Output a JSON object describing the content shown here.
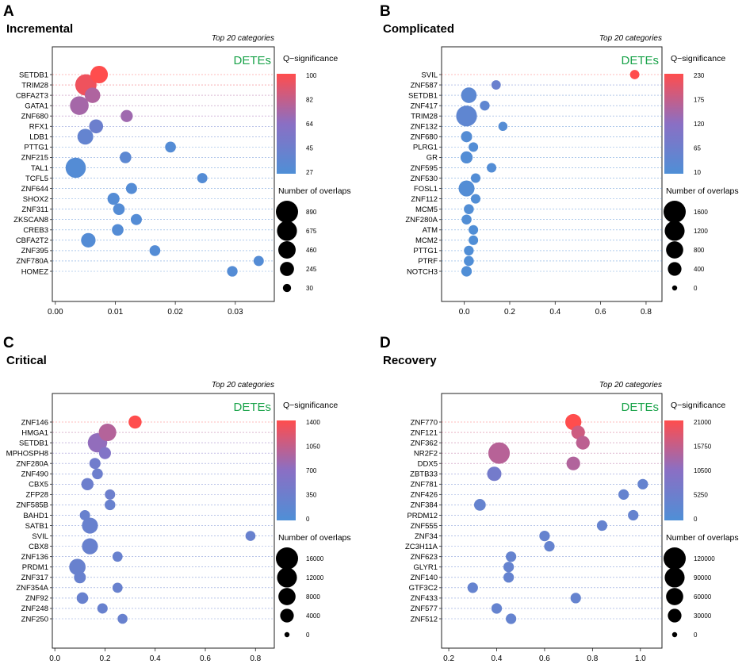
{
  "chart_data": [
    {
      "type": "scatter",
      "panel_label": "A",
      "title": "Incremental",
      "subtitle": "Top 20 categories",
      "annotation": "DETEs",
      "categories": [
        "SETDB1",
        "TRIM28",
        "CBFA2T3",
        "GATA1",
        "ZNF680",
        "RFX1",
        "LDB1",
        "PTTG1",
        "ZNF215",
        "TAL1",
        "TCFL5",
        "ZNF644",
        "SHOX2",
        "ZNF311",
        "ZKSCAN8",
        "CREB3",
        "CBFA2T2",
        "ZNF395",
        "ZNF780A",
        "HOMEZ"
      ],
      "x": [
        0.0073,
        0.0051,
        0.0062,
        0.004,
        0.0119,
        0.0068,
        0.005,
        0.0192,
        0.0117,
        0.0034,
        0.0245,
        0.0127,
        0.0097,
        0.0106,
        0.0135,
        0.0104,
        0.0055,
        0.0166,
        0.0339,
        0.0295
      ],
      "q": [
        100,
        95,
        75,
        72,
        70,
        45,
        40,
        30,
        35,
        30,
        30,
        30,
        30,
        30,
        30,
        30,
        30,
        30,
        30,
        30
      ],
      "overlaps": [
        470,
        800,
        330,
        560,
        150,
        240,
        350,
        100,
        130,
        700,
        80,
        110,
        150,
        130,
        110,
        130,
        270,
        100,
        80,
        90
      ],
      "xlim": [
        -0.0005,
        0.0365
      ],
      "xticks": [
        "0.00",
        "0.01",
        "0.02",
        "0.03"
      ],
      "xtick_values": [
        0,
        0.01,
        0.02,
        0.03
      ],
      "q_legend": {
        "title": "Q−significance",
        "min": 27,
        "max": 100,
        "labels": [
          "100",
          "82",
          "64",
          "45",
          "27"
        ]
      },
      "size_legend": {
        "title": "Number of overlaps",
        "max": 890,
        "labels": [
          "890",
          "675",
          "460",
          "245",
          "30"
        ],
        "values": [
          890,
          675,
          460,
          245,
          30
        ]
      }
    },
    {
      "type": "scatter",
      "panel_label": "B",
      "title": "Complicated",
      "subtitle": "Top 20 categories",
      "annotation": "DETEs",
      "categories": [
        "SVIL",
        "ZNF587",
        "SETDB1",
        "ZNF417",
        "TRIM28",
        "ZNF132",
        "ZNF680",
        "PLRG1",
        "GR",
        "ZNF595",
        "ZNF530",
        "FOSL1",
        "ZNF112",
        "MCM5",
        "ZNF280A",
        "ATM",
        "MCM2",
        "PTTG1",
        "PTRF",
        "NOTCH3"
      ],
      "x": [
        0.75,
        0.14,
        0.02,
        0.09,
        0.01,
        0.17,
        0.01,
        0.04,
        0.01,
        0.12,
        0.05,
        0.01,
        0.05,
        0.02,
        0.01,
        0.04,
        0.04,
        0.02,
        0.02,
        0.01
      ],
      "q": [
        230,
        60,
        35,
        40,
        40,
        20,
        20,
        18,
        18,
        18,
        18,
        18,
        15,
        15,
        15,
        12,
        12,
        12,
        12,
        12
      ],
      "overlaps": [
        100,
        100,
        600,
        120,
        1350,
        90,
        200,
        110,
        270,
        110,
        110,
        640,
        110,
        130,
        130,
        110,
        110,
        120,
        130,
        160
      ],
      "xlim": [
        -0.1,
        0.87
      ],
      "xticks": [
        "0.0",
        "0.2",
        "0.4",
        "0.6",
        "0.8"
      ],
      "xtick_values": [
        0,
        0.2,
        0.4,
        0.6,
        0.8
      ],
      "q_legend": {
        "title": "Q−significance",
        "min": 10,
        "max": 230,
        "labels": [
          "230",
          "175",
          "120",
          "65",
          "10"
        ]
      },
      "size_legend": {
        "title": "Number of overlaps",
        "max": 1600,
        "labels": [
          "1600",
          "1200",
          "800",
          "400",
          "0"
        ],
        "values": [
          1600,
          1200,
          800,
          400,
          0
        ]
      }
    },
    {
      "type": "scatter",
      "panel_label": "C",
      "title": "Critical",
      "subtitle": "Top 20 categories",
      "annotation": "DETEs",
      "categories": [
        "ZNF146",
        "HMGA1",
        "SETDB1",
        "MPHOSPH8",
        "ZNF280A",
        "ZNF490",
        "CBX5",
        "ZFP28",
        "ZNF585B",
        "BAHD1",
        "SATB1",
        "SVIL",
        "CBX8",
        "ZNF136",
        "PRDM1",
        "ZNF317",
        "ZNF354A",
        "ZNF92",
        "ZNF248",
        "ZNF250"
      ],
      "x": [
        0.32,
        0.21,
        0.17,
        0.2,
        0.16,
        0.17,
        0.13,
        0.22,
        0.22,
        0.12,
        0.14,
        0.78,
        0.14,
        0.25,
        0.09,
        0.1,
        0.25,
        0.11,
        0.19,
        0.27
      ],
      "q": [
        1400,
        950,
        750,
        600,
        400,
        350,
        350,
        350,
        300,
        300,
        300,
        300,
        300,
        300,
        300,
        300,
        300,
        300,
        300,
        300
      ],
      "overlaps": [
        3500,
        8500,
        11000,
        2600,
        2000,
        1800,
        2800,
        1500,
        1700,
        1500,
        6500,
        1300,
        6500,
        1400,
        7000,
        2500,
        1400,
        2300,
        1500,
        1300
      ],
      "xlim": [
        -0.01,
        0.875
      ],
      "xticks": [
        "0.0",
        "0.2",
        "0.4",
        "0.6",
        "0.8"
      ],
      "xtick_values": [
        0,
        0.2,
        0.4,
        0.6,
        0.8
      ],
      "q_legend": {
        "title": "Q−significance",
        "min": 0,
        "max": 1400,
        "labels": [
          "1400",
          "1050",
          "700",
          "350",
          "0"
        ]
      },
      "size_legend": {
        "title": "Number of overlaps",
        "max": 16000,
        "labels": [
          "16000",
          "12000",
          "8000",
          "4000",
          "0"
        ],
        "values": [
          16000,
          12000,
          8000,
          4000,
          0
        ]
      }
    },
    {
      "type": "scatter",
      "panel_label": "D",
      "title": "Recovery",
      "subtitle": "Top 20 categories",
      "annotation": "DETEs",
      "categories": [
        "ZNF770",
        "ZNF121",
        "ZNF362",
        "NR2F2",
        "DDX5",
        "ZBTB33",
        "ZNF781",
        "ZNF426",
        "ZNF384",
        "PRDM12",
        "ZNF555",
        "ZNF34",
        "ZC3H11A",
        "ZNF623",
        "GLYR1",
        "ZNF140",
        "GTF3C2",
        "ZNF433",
        "ZNF577",
        "ZNF512"
      ],
      "x": [
        0.72,
        0.74,
        0.76,
        0.41,
        0.72,
        0.39,
        1.01,
        0.93,
        0.33,
        0.97,
        0.84,
        0.6,
        0.62,
        0.46,
        0.45,
        0.45,
        0.3,
        0.73,
        0.4,
        0.46
      ],
      "q": [
        21000,
        16500,
        15000,
        14500,
        14000,
        6500,
        4000,
        4000,
        4000,
        4000,
        4000,
        4000,
        4000,
        4000,
        4000,
        4000,
        4000,
        4000,
        4000,
        4000
      ],
      "overlaps": [
        50000,
        30000,
        30000,
        110000,
        30000,
        35000,
        12000,
        12000,
        18000,
        12000,
        12000,
        12000,
        12000,
        12000,
        12000,
        12000,
        12000,
        12000,
        12000,
        12000
      ],
      "xlim": [
        0.17,
        1.09
      ],
      "xticks": [
        "0.2",
        "0.4",
        "0.6",
        "0.8",
        "1.0"
      ],
      "xtick_values": [
        0.2,
        0.4,
        0.6,
        0.8,
        1.0
      ],
      "q_legend": {
        "title": "Q−significance",
        "min": 0,
        "max": 21000,
        "labels": [
          "21000",
          "15750",
          "10500",
          "5250",
          "0"
        ]
      },
      "size_legend": {
        "title": "Number of overlaps",
        "max": 120000,
        "labels": [
          "120000",
          "90000",
          "60000",
          "30000",
          "0"
        ],
        "values": [
          120000,
          90000,
          60000,
          30000,
          0
        ]
      }
    }
  ],
  "colors": {
    "low": "#4f8fd6",
    "mid": "#8a6fc4",
    "high": "#ff4d4d",
    "annotation": "#1aa34a"
  }
}
